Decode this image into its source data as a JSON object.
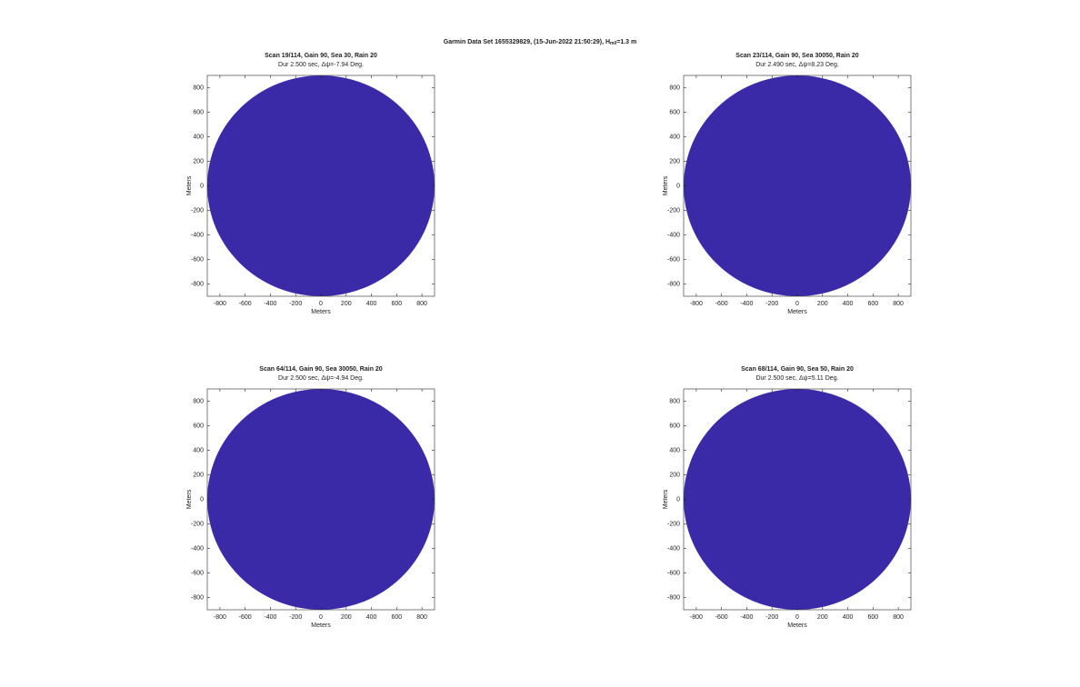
{
  "suptitle": {
    "main": "Garmin Data Set 1655329829, (15-Jun-2022 21:50:29), H",
    "sub": "m0",
    "rest": "=1.3 m"
  },
  "chart_data": [
    {
      "type": "radar-image",
      "title": "Scan 19/114, Gain 90, Sea 30, Rain 20",
      "subtitle": "Dur 2.500 sec,   Δψ=-7.94 Deg.",
      "xlabel": "Meters",
      "ylabel": "Meters",
      "color": "#3b2aa7",
      "xlim": [
        -900,
        900
      ],
      "ylim": [
        -900,
        900
      ],
      "xticks": [
        -800,
        -600,
        -400,
        -200,
        0,
        200,
        400,
        600,
        800
      ],
      "yticks": [
        -800,
        -600,
        -400,
        -200,
        0,
        200,
        400,
        600,
        800
      ]
    },
    {
      "type": "radar-image",
      "title": "Scan 23/114, Gain 90, Sea 30050, Rain 20",
      "subtitle": "Dur 2.490 sec,   Δψ=8.23 Deg.",
      "xlabel": "Meters",
      "ylabel": "Meters",
      "color": "#3b2aa7",
      "xlim": [
        -900,
        900
      ],
      "ylim": [
        -900,
        900
      ],
      "xticks": [
        -800,
        -600,
        -400,
        -200,
        0,
        200,
        400,
        600,
        800
      ],
      "yticks": [
        -800,
        -600,
        -400,
        -200,
        0,
        200,
        400,
        600,
        800
      ]
    },
    {
      "type": "radar-image",
      "title": "Scan 64/114, Gain 90, Sea 30050, Rain 20",
      "subtitle": "Dur 2.500 sec,   Δψ=-4.94 Deg.",
      "xlabel": "Meters",
      "ylabel": "Meters",
      "color": "#3b2aa7",
      "xlim": [
        -900,
        900
      ],
      "ylim": [
        -900,
        900
      ],
      "xticks": [
        -800,
        -600,
        -400,
        -200,
        0,
        200,
        400,
        600,
        800
      ],
      "yticks": [
        -800,
        -600,
        -400,
        -200,
        0,
        200,
        400,
        600,
        800
      ]
    },
    {
      "type": "radar-image",
      "title": "Scan 68/114, Gain 90, Sea 50, Rain 20",
      "subtitle": "Dur 2.500 sec,   Δψ=5.11 Deg.",
      "xlabel": "Meters",
      "ylabel": "Meters",
      "color": "#3b2aa7",
      "xlim": [
        -900,
        900
      ],
      "ylim": [
        -900,
        900
      ],
      "xticks": [
        -800,
        -600,
        -400,
        -200,
        0,
        200,
        400,
        600,
        800
      ],
      "yticks": [
        -800,
        -600,
        -400,
        -200,
        0,
        200,
        400,
        600,
        800
      ]
    }
  ]
}
